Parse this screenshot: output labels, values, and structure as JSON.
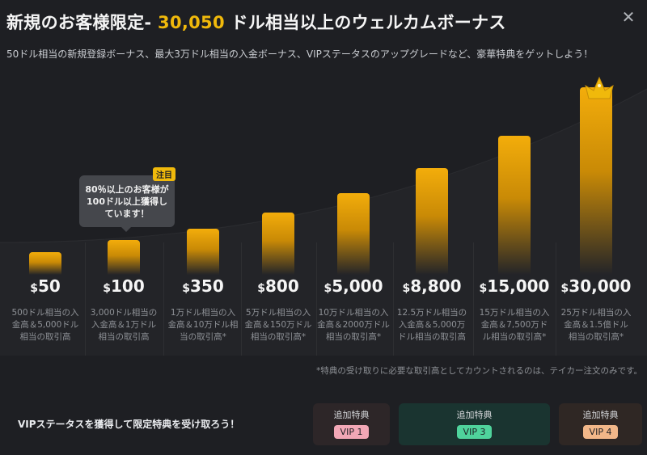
{
  "header": {
    "title_prefix": "新規のお客様限定- ",
    "title_amount": "30,050",
    "title_suffix": " ドル相当以上のウェルカムボーナス",
    "subtitle": "50ドル相当の新規登録ボーナス、最大3万ドル相当の入金ボーナス、VIPステータスのアップグレードなど、豪華特典をゲットしよう！",
    "close_icon": "close-icon"
  },
  "tooltip": {
    "badge": "注目",
    "line1": "80％以上のお客様が",
    "line2": "100ドル以上獲得し",
    "line3": "ています！"
  },
  "tiers": [
    {
      "currency": "$",
      "amount": "50",
      "desc": "500ドル相当の入金高＆5,000ドル相当の取引高",
      "bar_level": 0.08
    },
    {
      "currency": "$",
      "amount": "100",
      "desc": "3,000ドル相当の入金高＆1万ドル相当の取引高",
      "bar_level": 0.15
    },
    {
      "currency": "$",
      "amount": "350",
      "desc": "1万ドル相当の入金高＆10万ドル相当の取引高*",
      "bar_level": 0.21
    },
    {
      "currency": "$",
      "amount": "800",
      "desc": "5万ドル相当の入金高＆150万ドル相当の取引高*",
      "bar_level": 0.3
    },
    {
      "currency": "$",
      "amount": "5,000",
      "desc": "10万ドル相当の入金高＆2000万ドル相当の取引高*",
      "bar_level": 0.41
    },
    {
      "currency": "$",
      "amount": "8,800",
      "desc": "12.5万ドル相当の入金高＆5,000万ドル相当の取引高",
      "bar_level": 0.55
    },
    {
      "currency": "$",
      "amount": "15,000",
      "desc": "15万ドル相当の入金高＆7,500万ドル相当の取引高*",
      "bar_level": 0.73
    },
    {
      "currency": "$",
      "amount": "30,000",
      "desc": "25万ドル相当の入金高＆1.5億ドル相当の取引高*",
      "bar_level": 1.0
    }
  ],
  "footnote": "*特典の受け取りに必要な取引高としてカウントされるのは、テイカー注文のみです。",
  "footer": {
    "vip_text": "VIPステータスを獲得して限定特典を受け取ろう！",
    "cards": [
      {
        "title": "追加特典",
        "vip": "VIP 1"
      },
      {
        "title": "追加特典",
        "vip": "VIP 3"
      },
      {
        "title": "追加特典",
        "vip": "VIP 4"
      }
    ]
  },
  "icons": {
    "crown": "crown-icon"
  },
  "colors": {
    "accent": "#f0b90b",
    "background": "#1e1f23"
  }
}
